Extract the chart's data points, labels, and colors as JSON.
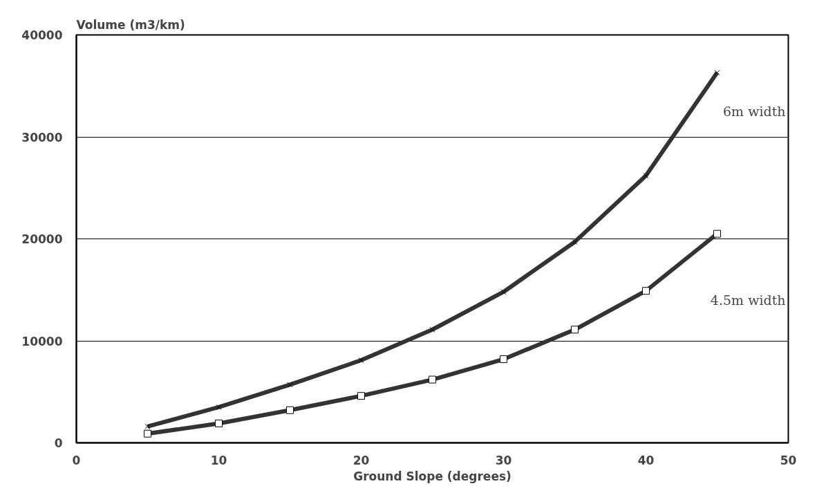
{
  "chart_data": {
    "type": "line",
    "ylabel": "Volume (m3/km)",
    "xlabel": "Ground Slope (degrees)",
    "x": [
      5,
      10,
      15,
      20,
      25,
      30,
      35,
      40,
      45
    ],
    "series": [
      {
        "name": "6m width",
        "color": "#333333",
        "marker": "x",
        "values": [
          1600,
          3500,
          5700,
          8100,
          11100,
          14800,
          19700,
          26200,
          36300
        ]
      },
      {
        "name": "4.5m width",
        "color": "#333333",
        "marker": "square",
        "values": [
          900,
          1900,
          3200,
          4600,
          6200,
          8200,
          11100,
          14900,
          20500
        ]
      }
    ],
    "xlim": [
      0,
      50
    ],
    "xticks": [
      0,
      10,
      20,
      30,
      40,
      50
    ],
    "ylim": [
      0,
      40000
    ],
    "yticks": [
      0,
      10000,
      20000,
      30000,
      40000
    ],
    "grid": "y",
    "line_style": "solid"
  }
}
